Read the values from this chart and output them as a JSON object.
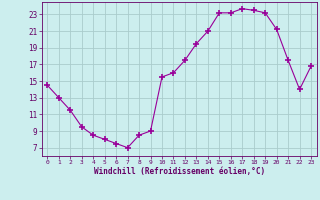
{
  "hours": [
    0,
    1,
    2,
    3,
    4,
    5,
    6,
    7,
    8,
    9,
    10,
    11,
    12,
    13,
    14,
    15,
    16,
    17,
    18,
    19,
    20,
    21,
    22,
    23
  ],
  "values": [
    14.5,
    13.0,
    11.5,
    9.5,
    8.5,
    8.0,
    7.5,
    7.0,
    8.5,
    9.0,
    15.5,
    16.0,
    17.5,
    19.5,
    21.0,
    23.2,
    23.2,
    23.7,
    23.5,
    23.2,
    21.2,
    17.5,
    14.0,
    16.8
  ],
  "line_color": "#990099",
  "marker": "+",
  "bg_color": "#cceeee",
  "grid_color": "#aacccc",
  "xlabel": "Windchill (Refroidissement éolien,°C)",
  "yticks": [
    7,
    9,
    11,
    13,
    15,
    17,
    19,
    21,
    23
  ],
  "xticks": [
    0,
    1,
    2,
    3,
    4,
    5,
    6,
    7,
    8,
    9,
    10,
    11,
    12,
    13,
    14,
    15,
    16,
    17,
    18,
    19,
    20,
    21,
    22,
    23
  ],
  "ylim": [
    6.0,
    24.5
  ],
  "xlim": [
    -0.5,
    23.5
  ],
  "axis_color": "#660066",
  "tick_color": "#660066",
  "label_color": "#660066"
}
